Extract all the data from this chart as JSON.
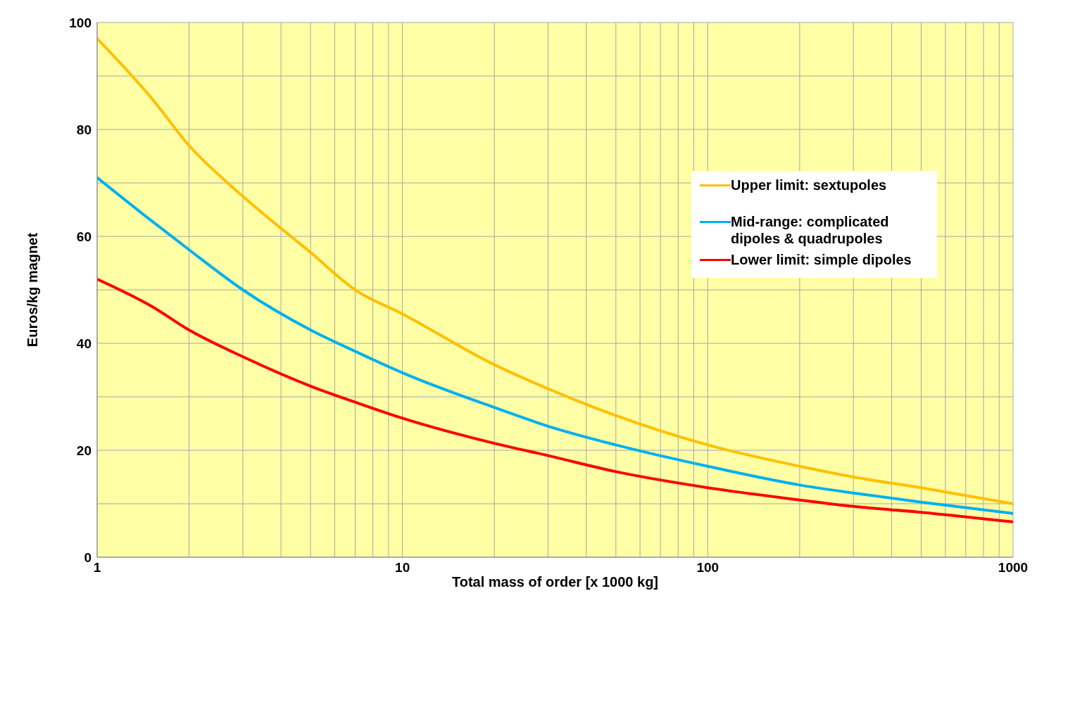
{
  "chart_data": {
    "type": "line",
    "xlabel": "Total mass of order [x 1000 kg]",
    "ylabel": "Euros/kg magnet",
    "log": "x",
    "x": [
      1,
      1.5,
      2,
      3,
      5,
      7,
      10,
      20,
      30,
      50,
      100,
      200,
      300,
      500,
      1000
    ],
    "series": [
      {
        "name": "Upper limit: sextupoles",
        "color": "#ffc000",
        "values": [
          97,
          86,
          77,
          67.5,
          57,
          50,
          45.5,
          36,
          31.5,
          26.5,
          21,
          17,
          15,
          13,
          10
        ]
      },
      {
        "name": "Mid-range: complicated dipoles & quadrupoles",
        "color": "#00b0f0",
        "values": [
          71,
          63,
          57.5,
          50,
          42.5,
          38.5,
          34.5,
          28,
          24.5,
          21,
          17,
          13.5,
          12,
          10.3,
          8.2
        ]
      },
      {
        "name": "Lower limit: simple dipoles",
        "color": "#ff0000",
        "values": [
          52,
          47,
          42.5,
          37.5,
          32,
          29,
          26,
          21.3,
          19,
          16,
          13,
          10.7,
          9.5,
          8.4,
          6.6
        ]
      }
    ],
    "xlim": [
      1,
      1000
    ],
    "ylim": [
      0,
      100
    ],
    "xticks": [
      1,
      {
        "value": 2,
        "label": null
      },
      {
        "value": 3,
        "label": null
      },
      {
        "value": 4,
        "label": null
      },
      {
        "value": 5,
        "label": null
      },
      {
        "value": 6,
        "label": null
      },
      {
        "value": 7,
        "label": null
      },
      {
        "value": 8,
        "label": null
      },
      {
        "value": 9,
        "label": null
      },
      10,
      {
        "value": 20,
        "label": null
      },
      {
        "value": 30,
        "label": null
      },
      {
        "value": 40,
        "label": null
      },
      {
        "value": 50,
        "label": null
      },
      {
        "value": 60,
        "label": null
      },
      {
        "value": 70,
        "label": null
      },
      {
        "value": 80,
        "label": null
      },
      {
        "value": 90,
        "label": null
      },
      100,
      {
        "value": 200,
        "label": null
      },
      {
        "value": 300,
        "label": null
      },
      {
        "value": 400,
        "label": null
      },
      {
        "value": 500,
        "label": null
      },
      {
        "value": 600,
        "label": null
      },
      {
        "value": 700,
        "label": null
      },
      {
        "value": 800,
        "label": null
      },
      {
        "value": 900,
        "label": null
      },
      1000
    ],
    "yticks": [
      0,
      {
        "value": 10,
        "label": null
      },
      20,
      {
        "value": 30,
        "label": null
      },
      40,
      {
        "value": 50,
        "label": null
      },
      60,
      {
        "value": 70,
        "label": null
      },
      80,
      {
        "value": 90,
        "label": null
      },
      100
    ],
    "grid": true,
    "legend": "top right",
    "marker": "none",
    "line_style": "solid"
  }
}
